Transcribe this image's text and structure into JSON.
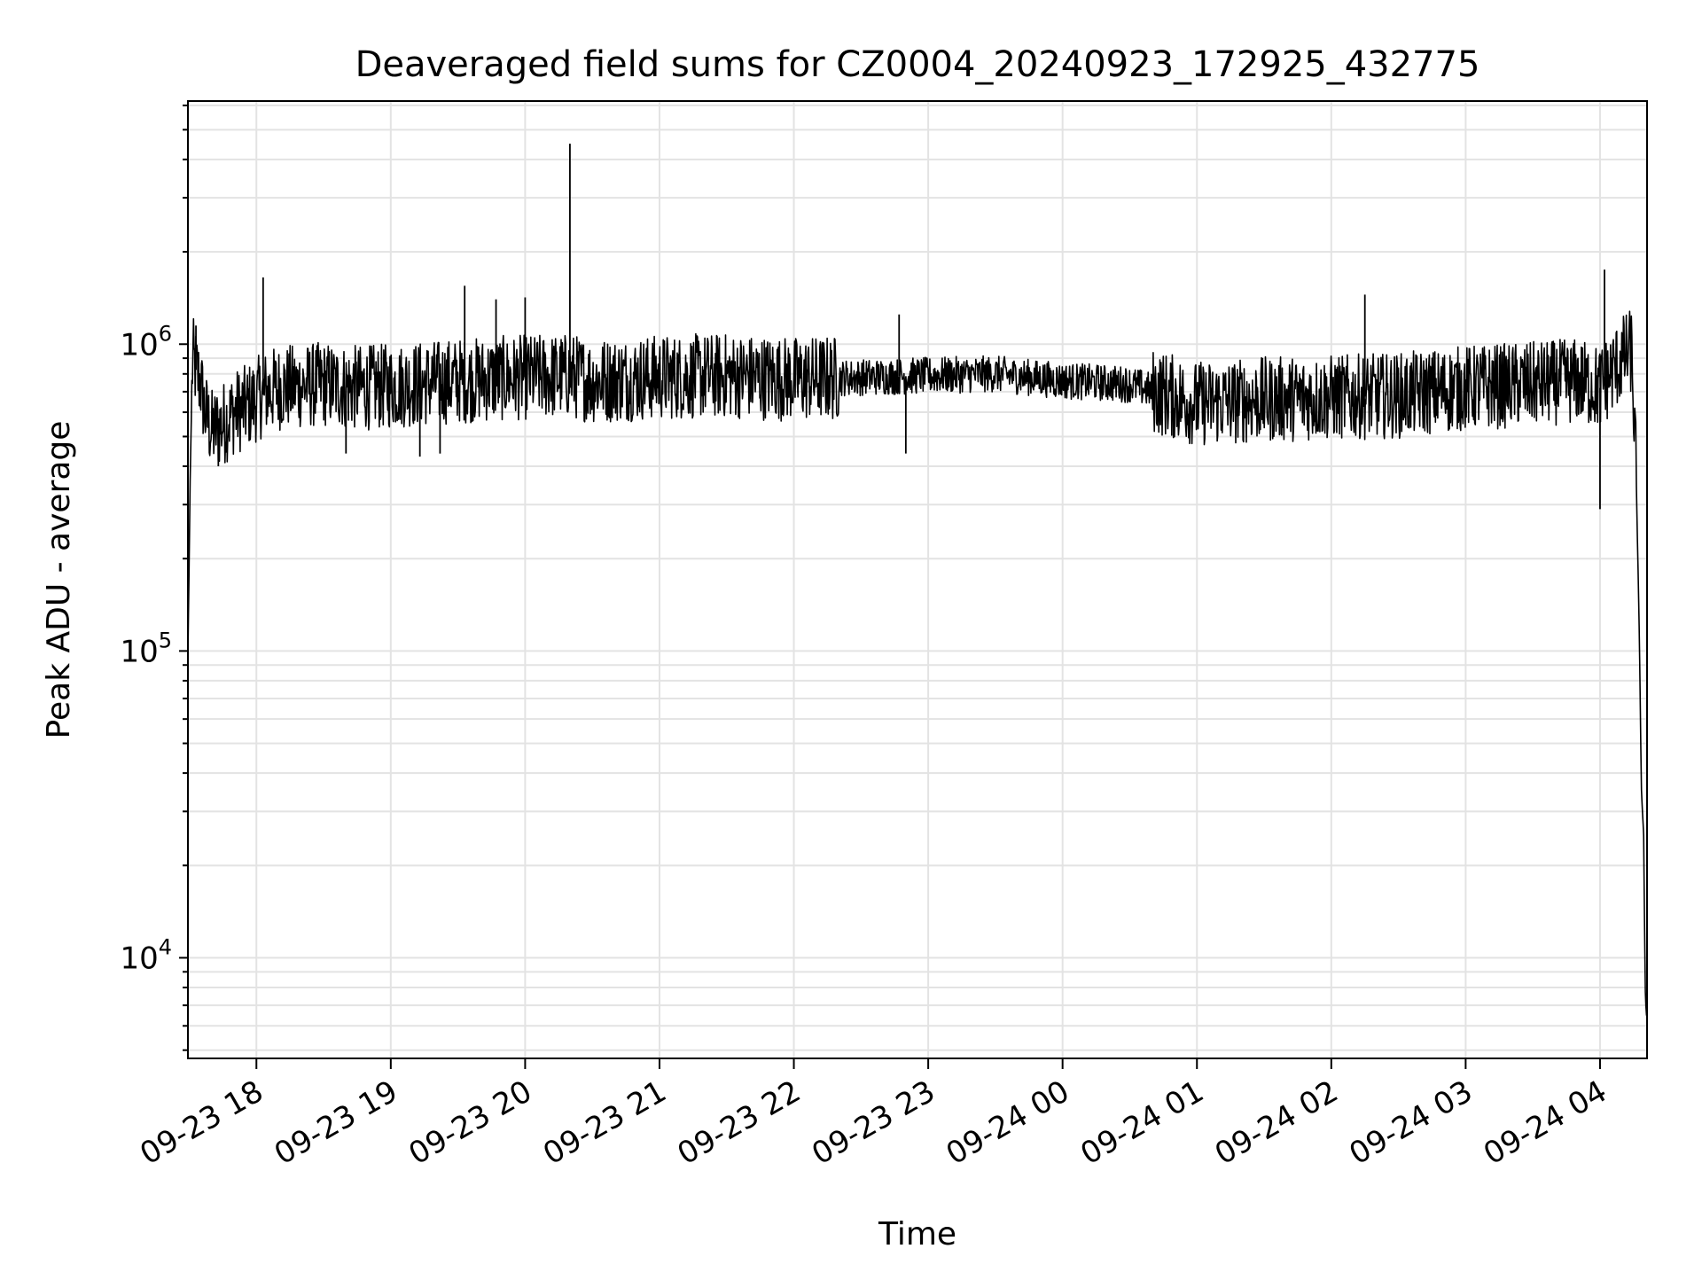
{
  "chart_data": {
    "type": "line",
    "title": "Deaveraged field sums for CZ0004_20240923_172925_432775",
    "xlabel": "Time",
    "ylabel": "Peak ADU - average",
    "yscale": "log",
    "ylim": [
      4700,
      6200000
    ],
    "xlim": [
      "2024-09-23 17:29:25",
      "2024-09-24 04:21:00"
    ],
    "grid": true,
    "line_color": "#000000",
    "x_ticks": [
      "09-23 18",
      "09-23 19",
      "09-23 20",
      "09-23 21",
      "09-23 22",
      "09-23 23",
      "09-24 00",
      "09-24 01",
      "09-24 02",
      "09-24 03",
      "09-24 04"
    ],
    "y_ticks": [
      {
        "base": "10",
        "exp": "4",
        "value": 10000
      },
      {
        "base": "10",
        "exp": "5",
        "value": 100000
      },
      {
        "base": "10",
        "exp": "6",
        "value": 1000000
      }
    ],
    "series": [
      {
        "x": [
          "2024-09-23 17:29:25",
          "2024-09-23 17:30:30",
          "2024-09-23 17:31:30",
          "2024-09-23 17:32:30",
          "2024-09-23 17:33:30",
          "2024-09-23 17:35:00",
          "2024-09-23 17:37:00",
          "2024-09-23 17:40:00",
          "2024-09-23 17:45:00",
          "2024-09-23 17:50:00",
          "2024-09-23 17:55:00",
          "2024-09-23 18:00:00",
          "2024-09-23 18:05:00",
          "2024-09-23 18:10:00",
          "2024-09-23 18:20:00",
          "2024-09-23 18:30:00",
          "2024-09-23 18:45:00",
          "2024-09-23 19:00:00",
          "2024-09-23 19:30:00",
          "2024-09-23 20:00:00",
          "2024-09-23 20:20:00",
          "2024-09-23 20:30:00",
          "2024-09-23 21:00:00",
          "2024-09-23 21:30:00",
          "2024-09-23 22:00:00",
          "2024-09-23 22:30:00",
          "2024-09-23 23:00:00",
          "2024-09-23 23:30:00",
          "2024-09-24 00:00:00",
          "2024-09-24 00:30:00",
          "2024-09-24 01:00:00",
          "2024-09-24 01:30:00",
          "2024-09-24 02:00:00",
          "2024-09-24 02:30:00",
          "2024-09-24 03:00:00",
          "2024-09-24 03:30:00",
          "2024-09-24 03:50:00",
          "2024-09-24 04:00:00",
          "2024-09-24 04:10:00",
          "2024-09-24 04:14:00",
          "2024-09-24 04:16:00",
          "2024-09-24 04:17:30",
          "2024-09-24 04:18:30",
          "2024-09-24 04:19:30",
          "2024-09-24 04:20:10",
          "2024-09-24 04:20:40"
        ],
        "y": [
          95000,
          400000,
          900000,
          850000,
          800000,
          750000,
          600000,
          520000,
          550000,
          600000,
          620000,
          660000,
          700000,
          720000,
          730000,
          740000,
          720000,
          730000,
          760000,
          780000,
          790000,
          760000,
          780000,
          790000,
          770000,
          780000,
          790000,
          800000,
          760000,
          740000,
          640000,
          660000,
          670000,
          680000,
          720000,
          740000,
          760000,
          720000,
          900000,
          950000,
          420000,
          120000,
          35000,
          25000,
          8000,
          6500
        ]
      }
    ],
    "spikes": [
      {
        "x": "2024-09-23 17:33:00",
        "y": 1150000
      },
      {
        "x": "2024-09-23 18:03:00",
        "y": 1650000
      },
      {
        "x": "2024-09-23 19:33:00",
        "y": 1550000
      },
      {
        "x": "2024-09-23 19:47:00",
        "y": 1400000
      },
      {
        "x": "2024-09-23 20:00:00",
        "y": 1420000
      },
      {
        "x": "2024-09-23 20:20:00",
        "y": 4500000
      },
      {
        "x": "2024-09-23 22:47:00",
        "y": 1250000
      },
      {
        "x": "2024-09-24 02:15:00",
        "y": 1450000
      },
      {
        "x": "2024-09-24 04:02:00",
        "y": 1750000
      }
    ],
    "dips": [
      {
        "x": "2024-09-23 17:43:00",
        "y": 400000
      },
      {
        "x": "2024-09-23 18:40:00",
        "y": 440000
      },
      {
        "x": "2024-09-23 19:13:00",
        "y": 430000
      },
      {
        "x": "2024-09-23 19:22:00",
        "y": 440000
      },
      {
        "x": "2024-09-23 22:50:00",
        "y": 440000
      },
      {
        "x": "2024-09-24 04:00:00",
        "y": 290000
      }
    ]
  }
}
